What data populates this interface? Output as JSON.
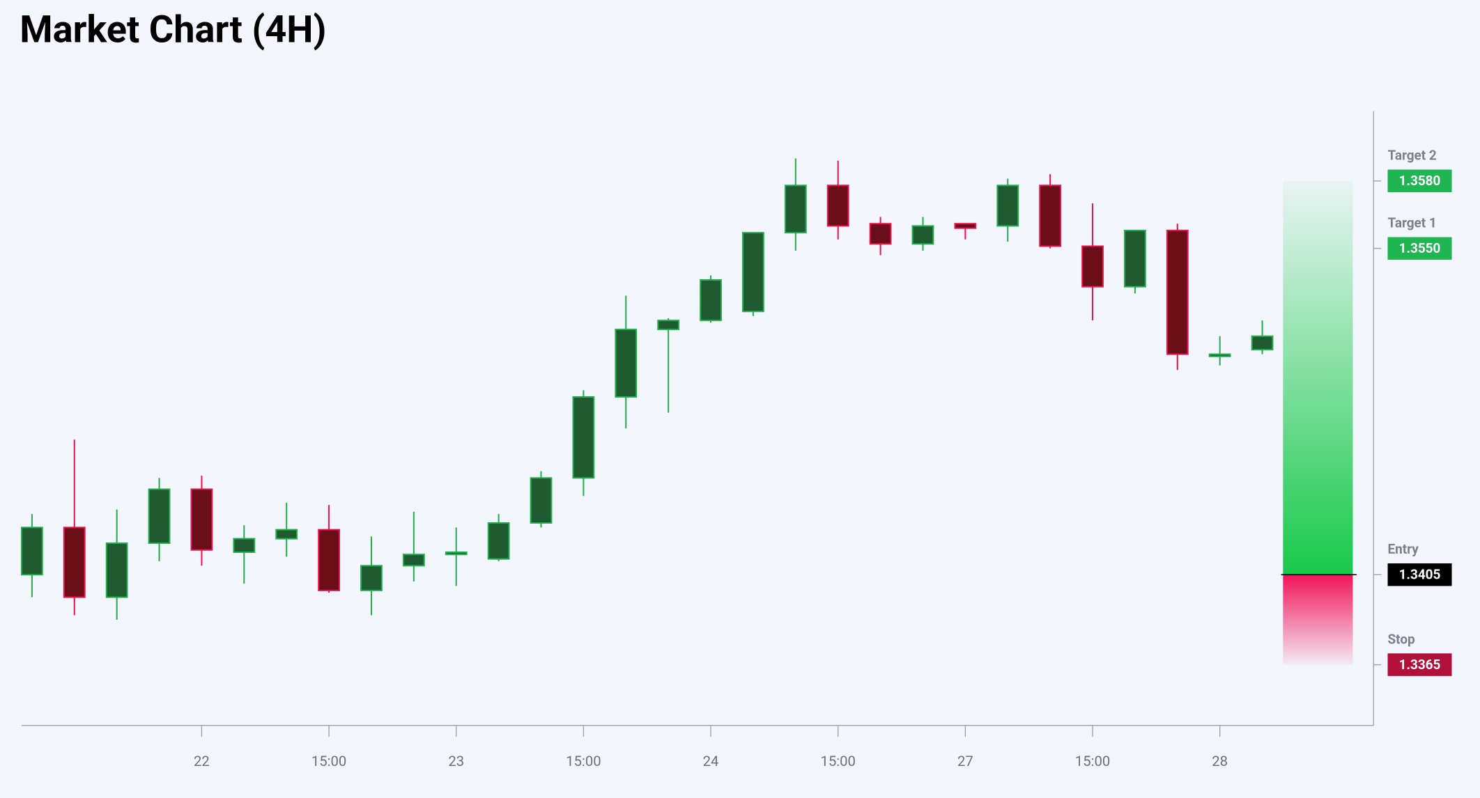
{
  "chart_data": {
    "type": "candlestick",
    "title": "Market Chart (4H)",
    "categories": [
      null,
      null,
      null,
      null,
      "22",
      null,
      null,
      "15:00",
      null,
      null,
      "23",
      null,
      null,
      "15:00",
      null,
      null,
      "24",
      null,
      null,
      "15:00",
      null,
      null,
      "27",
      null,
      null,
      "15:00",
      null,
      null,
      "28",
      null
    ],
    "open": [
      1.3405,
      1.3426,
      1.3395,
      1.3419,
      1.3443,
      1.3415,
      1.3421,
      1.3425,
      1.3398,
      1.3409,
      1.3414,
      1.3412,
      1.3428,
      1.3448,
      1.3484,
      1.3514,
      1.3518,
      1.3522,
      1.3557,
      1.3578,
      1.3561,
      1.3552,
      1.3561,
      1.356,
      1.3578,
      1.3551,
      1.3533,
      1.3558,
      1.3502,
      1.3505
    ],
    "high": [
      1.3432,
      1.3465,
      1.3434,
      1.3448,
      1.3449,
      1.3427,
      1.3437,
      1.3436,
      1.3422,
      1.3433,
      1.3426,
      1.3432,
      1.3451,
      1.3487,
      1.3529,
      1.3519,
      1.3538,
      1.3557,
      1.359,
      1.3589,
      1.3564,
      1.3564,
      1.3561,
      1.3581,
      1.3583,
      1.357,
      1.3558,
      1.3561,
      1.3511,
      1.3518
    ],
    "low": [
      1.3395,
      1.3387,
      1.3385,
      1.3411,
      1.3409,
      1.3401,
      1.3413,
      1.3397,
      1.3387,
      1.3402,
      1.34,
      1.3411,
      1.3426,
      1.344,
      1.347,
      1.3477,
      1.3517,
      1.352,
      1.3549,
      1.3554,
      1.3547,
      1.3549,
      1.3554,
      1.3553,
      1.355,
      1.3518,
      1.353,
      1.3496,
      1.3498,
      1.3503
    ],
    "close": [
      1.3426,
      1.3395,
      1.3419,
      1.3443,
      1.3416,
      1.3421,
      1.3425,
      1.3398,
      1.3409,
      1.3414,
      1.3415,
      1.3428,
      1.3448,
      1.3484,
      1.3514,
      1.3518,
      1.3536,
      1.3557,
      1.3578,
      1.356,
      1.3552,
      1.356,
      1.3559,
      1.3578,
      1.3551,
      1.3533,
      1.3558,
      1.3503,
      1.3503,
      1.3511
    ],
    "up_color": {
      "fill": "#1f5a30",
      "stroke": "#21b04b"
    },
    "down_color": {
      "fill": "#6a0e18",
      "stroke": "#e8164f"
    },
    "ylim": [
      1.3338,
      1.3611
    ],
    "levels": [
      {
        "name": "Target 2",
        "value": 1.358,
        "value_label": "1.3580",
        "color": "#1fb552"
      },
      {
        "name": "Target 1",
        "value": 1.355,
        "value_label": "1.3550",
        "color": "#1fb552"
      },
      {
        "name": "Entry",
        "value": 1.3405,
        "value_label": "1.3405",
        "color": "#000000"
      },
      {
        "name": "Stop",
        "value": 1.3365,
        "value_label": "1.3365",
        "color": "#b0103a"
      }
    ],
    "zone_up_color": "#18c94a",
    "zone_down_color": "#f2145a"
  }
}
